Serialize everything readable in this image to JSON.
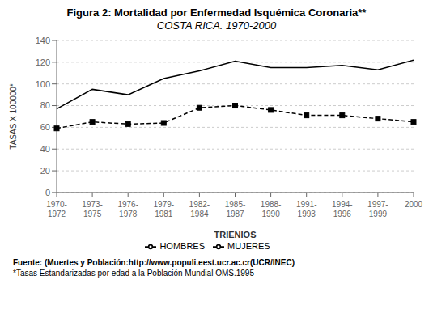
{
  "chart_data": {
    "type": "line",
    "title": "Figura 2: Mortalidad por Enfermedad Isquémica Coronaria**",
    "subtitle": "COSTA RICA. 1970-2000",
    "x_label": "TRIENIOS",
    "y_label": "TASAS X 100000*",
    "categories": [
      "1970-\n1972",
      "1973-\n1975",
      "1976-\n1978",
      "1979-\n1981",
      "1982-\n1984",
      "1985-\n1987",
      "1988-\n1990",
      "1991-\n1993",
      "1994-\n1996",
      "1997-\n1999",
      "2000"
    ],
    "series": [
      {
        "name": "HOMBRES",
        "color": "#000000",
        "line_style": "solid",
        "marker": "none",
        "values": [
          77,
          95,
          90,
          105,
          112,
          121,
          115,
          115,
          117,
          113,
          122
        ]
      },
      {
        "name": "MUJERES",
        "color": "#000000",
        "line_style": "dashed",
        "marker": "square",
        "values": [
          59,
          65,
          63,
          64,
          78,
          80,
          76,
          71,
          71,
          68,
          65
        ]
      }
    ],
    "ylim": [
      0,
      140
    ],
    "yticks": [
      0,
      20,
      40,
      60,
      80,
      100,
      120,
      140
    ],
    "grid": true,
    "legend": "bottom",
    "annotations": [
      "Fuente: (Muertes y Población:http://www.populi.eest.ucr.ac.cr(UCR/INEC)",
      "*Tasas Estandarizadas por edad a la Población Mundial OMS.1995"
    ]
  }
}
